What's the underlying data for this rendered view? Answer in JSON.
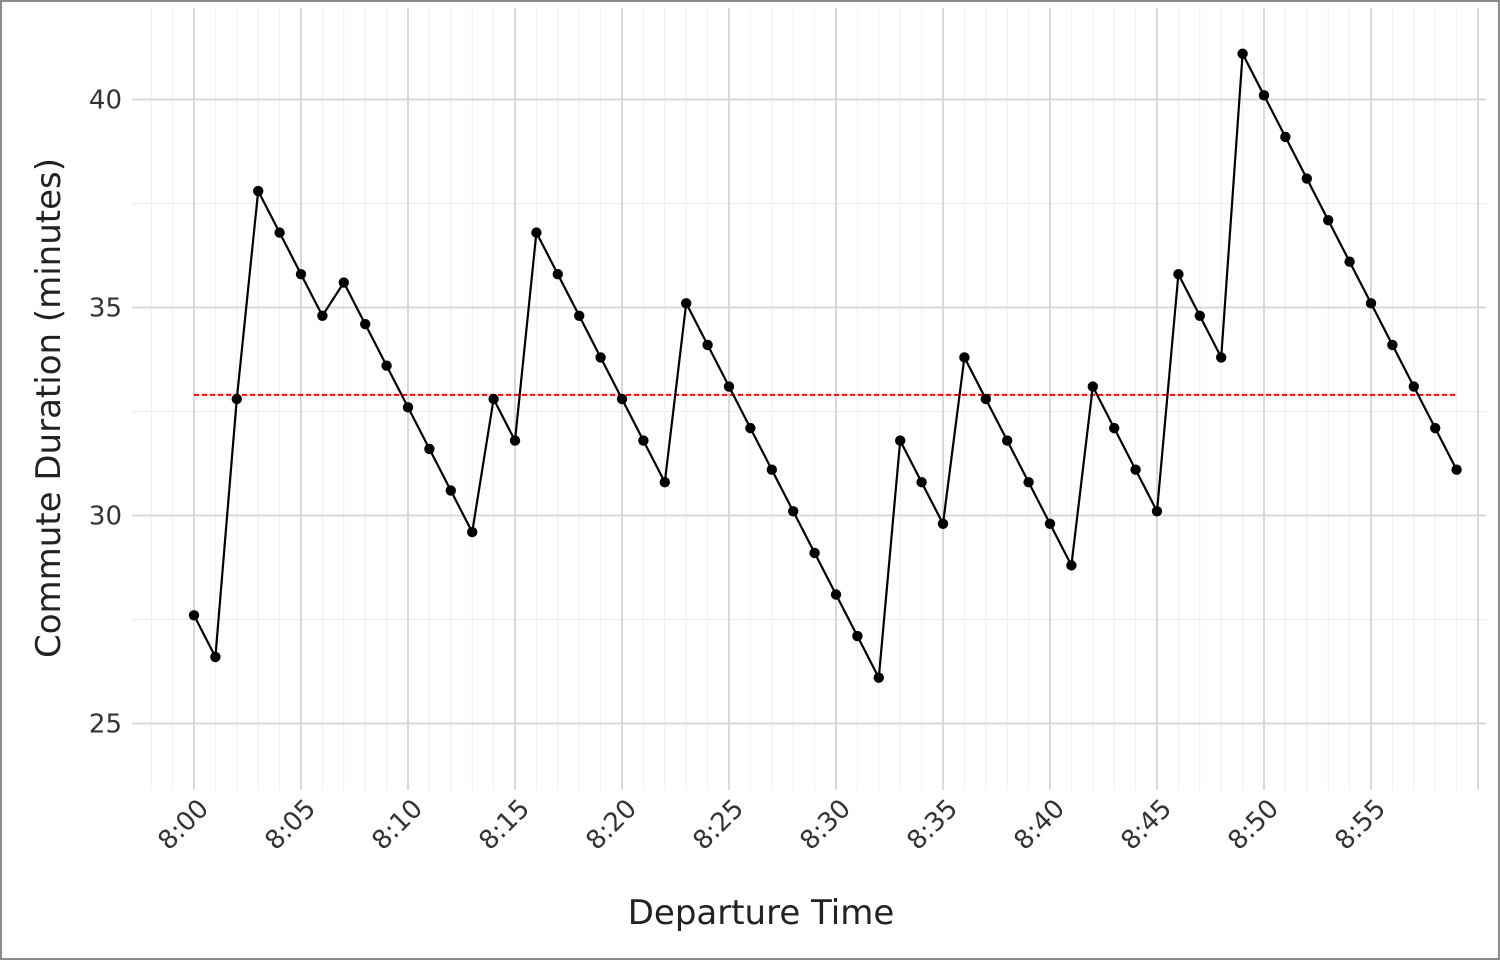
{
  "chart_data": {
    "type": "line",
    "title": "",
    "xlabel": "Departure Time",
    "ylabel": "Commute Duration (minutes)",
    "x": [
      "8:00",
      "8:01",
      "8:02",
      "8:03",
      "8:04",
      "8:05",
      "8:06",
      "8:07",
      "8:08",
      "8:09",
      "8:10",
      "8:11",
      "8:12",
      "8:13",
      "8:14",
      "8:15",
      "8:16",
      "8:17",
      "8:18",
      "8:19",
      "8:20",
      "8:21",
      "8:22",
      "8:23",
      "8:24",
      "8:25",
      "8:26",
      "8:27",
      "8:28",
      "8:29",
      "8:30",
      "8:31",
      "8:32",
      "8:33",
      "8:34",
      "8:35",
      "8:36",
      "8:37",
      "8:38",
      "8:39",
      "8:40",
      "8:41",
      "8:42",
      "8:43",
      "8:44",
      "8:45",
      "8:46",
      "8:47",
      "8:48",
      "8:49",
      "8:50",
      "8:51",
      "8:52",
      "8:53",
      "8:54",
      "8:55",
      "8:56",
      "8:57",
      "8:58",
      "8:59"
    ],
    "x_tick_labels": [
      "8:00",
      "8:05",
      "8:10",
      "8:15",
      "8:20",
      "8:25",
      "8:30",
      "8:35",
      "8:40",
      "8:45",
      "8:50",
      "8:55"
    ],
    "series": [
      {
        "values": [
          27.6,
          26.6,
          32.8,
          37.8,
          36.8,
          35.8,
          34.8,
          35.6,
          34.6,
          33.6,
          32.6,
          31.6,
          30.6,
          29.6,
          32.8,
          31.8,
          36.8,
          35.8,
          34.8,
          33.8,
          32.8,
          31.8,
          30.8,
          35.1,
          34.1,
          33.1,
          32.1,
          31.1,
          30.1,
          29.1,
          28.1,
          27.1,
          26.1,
          31.8,
          30.8,
          29.8,
          33.8,
          32.8,
          31.8,
          30.8,
          29.8,
          28.8,
          33.1,
          32.1,
          31.1,
          30.1,
          35.8,
          34.8,
          33.8,
          41.1,
          40.1,
          39.1,
          38.1,
          37.1,
          36.1,
          35.1,
          34.1,
          33.1,
          32.1,
          31.1
        ],
        "color": "#000000"
      }
    ],
    "reference_line": {
      "y": 32.9,
      "color": "#ff0000",
      "style": "dashed"
    },
    "y_ticks": [
      25,
      30,
      35,
      40
    ],
    "ylim": [
      23.4,
      42.2
    ],
    "grid": true,
    "legend": "none"
  }
}
